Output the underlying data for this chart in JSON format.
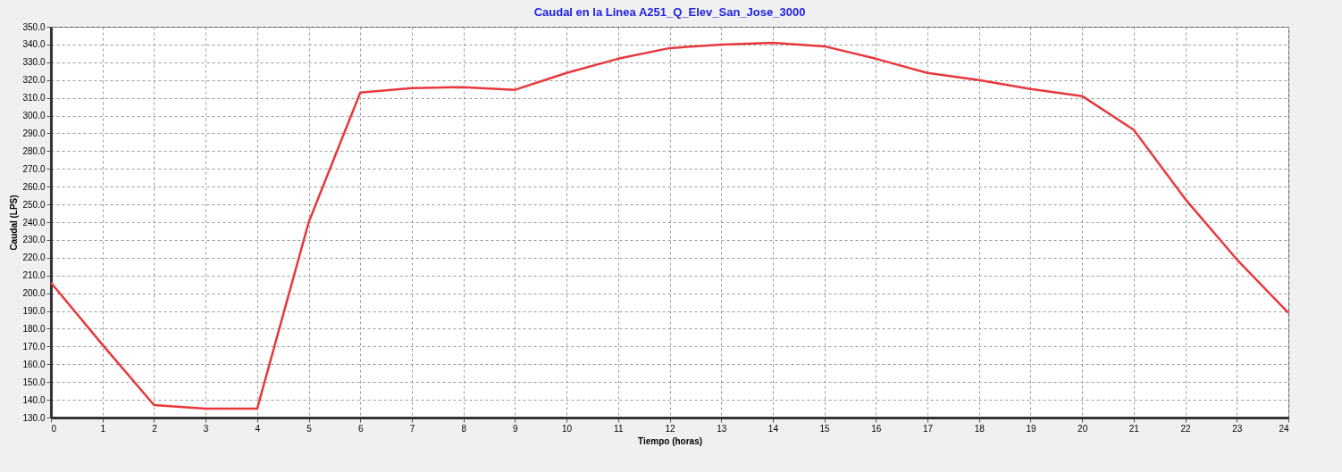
{
  "chart_data": {
    "type": "line",
    "title": "Caudal en la Linea A251_Q_Elev_San_Jose_3000",
    "xlabel": "Tiempo (horas)",
    "ylabel": "Caudal (LPS)",
    "x": [
      0,
      1,
      2,
      3,
      4,
      5,
      6,
      7,
      8,
      9,
      10,
      11,
      12,
      13,
      14,
      15,
      16,
      17,
      18,
      19,
      20,
      21,
      22,
      23,
      24
    ],
    "series": [
      {
        "color": "#e8383d",
        "values": [
          206,
          171,
          137,
          135,
          135,
          240,
          313,
          315.5,
          316,
          314.5,
          324,
          332,
          338,
          340,
          341,
          339,
          332,
          324,
          320,
          315,
          311,
          292,
          253,
          219,
          189
        ]
      }
    ],
    "xlim": [
      0,
      24
    ],
    "xticks": [
      0,
      1,
      2,
      3,
      4,
      5,
      6,
      7,
      8,
      9,
      10,
      11,
      12,
      13,
      14,
      15,
      16,
      17,
      18,
      19,
      20,
      21,
      22,
      23,
      24
    ],
    "ylim": [
      130,
      350
    ],
    "yticks": [
      {
        "value": 130,
        "label": "130.0"
      },
      {
        "value": 140,
        "label": "140.0"
      },
      {
        "value": 150,
        "label": "150.0"
      },
      {
        "value": 160,
        "label": "160.0"
      },
      {
        "value": 170,
        "label": "170.0"
      },
      {
        "value": 180,
        "label": "180.0"
      },
      {
        "value": 190,
        "label": "190.0"
      },
      {
        "value": 200,
        "label": "200.0"
      },
      {
        "value": 210,
        "label": "210.0"
      },
      {
        "value": 220,
        "label": "220.0"
      },
      {
        "value": 230,
        "label": "230.0"
      },
      {
        "value": 240,
        "label": "240.0"
      },
      {
        "value": 250,
        "label": "250.0"
      },
      {
        "value": 260,
        "label": "260.0"
      },
      {
        "value": 270,
        "label": "270.0"
      },
      {
        "value": 280,
        "label": "280.0"
      },
      {
        "value": 290,
        "label": "290.0"
      },
      {
        "value": 300,
        "label": "300.0"
      },
      {
        "value": 310,
        "label": "310.0"
      },
      {
        "value": 320,
        "label": "320.0"
      },
      {
        "value": 330,
        "label": "330.0"
      },
      {
        "value": 340,
        "label": "340.0"
      },
      {
        "value": 350,
        "label": "350.0"
      }
    ],
    "grid": true,
    "legend": false,
    "line_style": "solid"
  }
}
